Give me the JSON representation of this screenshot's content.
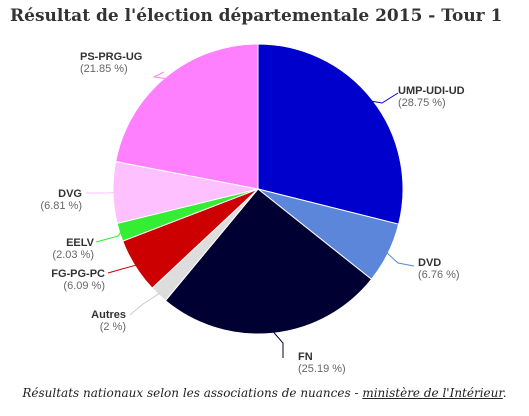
{
  "chart_data": {
    "type": "pie",
    "title": "Résultat de l'élection départementale 2015 - Tour 1",
    "slices": [
      {
        "name": "UMP-UDI-UD",
        "value_label": "(28.75 %)",
        "value": 28.75,
        "color": "#0000cc",
        "line_color": "#0000cc"
      },
      {
        "name": "DVD",
        "value_label": "(6.76 %)",
        "value": 6.76,
        "color": "#5b86d9",
        "line_color": "#5b86d9"
      },
      {
        "name": "FN",
        "value_label": "(25.19 %)",
        "value": 25.19,
        "color": "#000033",
        "line_color": "#000033"
      },
      {
        "name": "Autres",
        "value_label": "(2 %)",
        "value": 2.0,
        "color": "#dddddd",
        "line_color": "#cccccc"
      },
      {
        "name": "FG-PG-PC",
        "value_label": "(6.09 %)",
        "value": 6.09,
        "color": "#cc0000",
        "line_color": "#cc0000"
      },
      {
        "name": "EELV",
        "value_label": "(2.03 %)",
        "value": 2.03,
        "color": "#33ee33",
        "line_color": "#33ee33"
      },
      {
        "name": "DVG",
        "value_label": "(6.81 %)",
        "value": 6.81,
        "color": "#ffc0ff",
        "line_color": "#ffc0ff"
      },
      {
        "name": "PS-PRG-UG",
        "value_label": "(21.85 %)",
        "value": 21.85,
        "color": "#ff80ff",
        "line_color": "#ff80ff"
      }
    ]
  },
  "caption": {
    "text": "Résultats nationaux selon les associations de nuances - ",
    "link": "ministère de l'Intérieur",
    "end": "."
  }
}
